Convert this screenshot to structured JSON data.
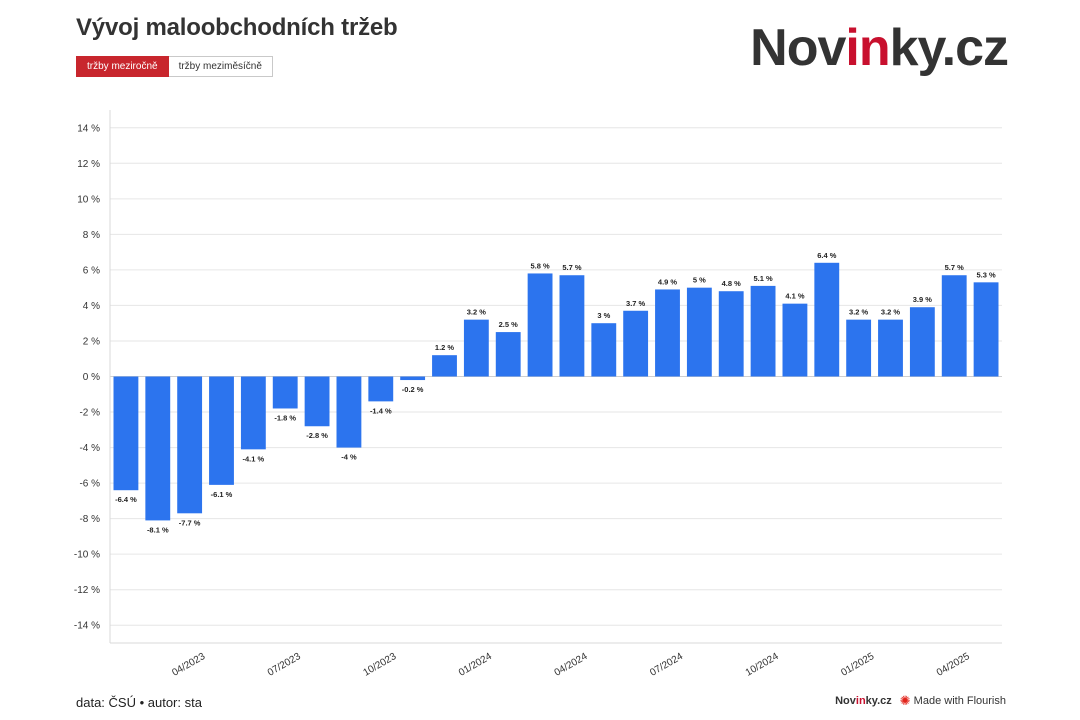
{
  "header": {
    "title": "Vývoj maloobchodních tržeb",
    "logo_pre": "Nov",
    "logo_mid": "in",
    "logo_post": "ky.cz"
  },
  "tabs": [
    {
      "label": "tržby meziročně",
      "active": true
    },
    {
      "label": "tržby meziměsíčně",
      "active": false
    }
  ],
  "footer": {
    "source": "data: ČSÚ • autor: sta",
    "logo_pre": "Nov",
    "logo_mid": "in",
    "logo_post": "ky.cz",
    "flourish_icon": "flourish-icon",
    "flourish_text": "Made with Flourish"
  },
  "chart_data": {
    "type": "bar",
    "categories": [
      "02/2023",
      "03/2023",
      "04/2023",
      "05/2023",
      "06/2023",
      "07/2023",
      "08/2023",
      "09/2023",
      "10/2023",
      "11/2023",
      "12/2023",
      "01/2024",
      "02/2024",
      "03/2024",
      "04/2024",
      "05/2024",
      "06/2024",
      "07/2024",
      "08/2024",
      "09/2024",
      "10/2024",
      "11/2024",
      "12/2024",
      "01/2025",
      "02/2025",
      "03/2025",
      "04/2025",
      "05/2025"
    ],
    "values": [
      -6.4,
      -8.1,
      -7.7,
      -6.1,
      -4.1,
      -1.8,
      -2.8,
      -4,
      -1.4,
      -0.2,
      1.2,
      3.2,
      2.5,
      5.8,
      5.7,
      3,
      3.7,
      4.9,
      5,
      4.8,
      5.1,
      4.1,
      6.4,
      3.2,
      3.2,
      3.9,
      5.7,
      5.3
    ],
    "value_labels": [
      "-6.4 %",
      "-8.1 %",
      "-7.7 %",
      "-6.1 %",
      "-4.1 %",
      "-1.8 %",
      "-2.8 %",
      "-4 %",
      "-1.4 %",
      "-0.2 %",
      "1.2 %",
      "3.2 %",
      "2.5 %",
      "5.8 %",
      "5.7 %",
      "3 %",
      "3.7 %",
      "4.9 %",
      "5 %",
      "4.8 %",
      "5.1 %",
      "4.1 %",
      "6.4 %",
      "3.2 %",
      "3.2 %",
      "3.9 %",
      "5.7 %",
      "5.3 %"
    ],
    "x_tick_labels": [
      "04/2023",
      "07/2023",
      "10/2023",
      "01/2024",
      "04/2024",
      "07/2024",
      "10/2024",
      "01/2025",
      "04/2025"
    ],
    "x_tick_indices": [
      2,
      5,
      8,
      11,
      14,
      17,
      20,
      23,
      26
    ],
    "y_ticks": [
      14,
      12,
      10,
      8,
      6,
      4,
      2,
      0,
      -2,
      -4,
      -6,
      -8,
      -10,
      -12,
      -14
    ],
    "y_tick_labels": [
      "14 %",
      "12 %",
      "10 %",
      "8 %",
      "6 %",
      "4 %",
      "2 %",
      "0 %",
      "-2 %",
      "-4 %",
      "-6 %",
      "-8 %",
      "-10 %",
      "-12 %",
      "-14 %"
    ],
    "ylim": [
      -15,
      15
    ],
    "bar_color": "#2c74ee",
    "grid": true,
    "xlabel": "",
    "ylabel": ""
  }
}
